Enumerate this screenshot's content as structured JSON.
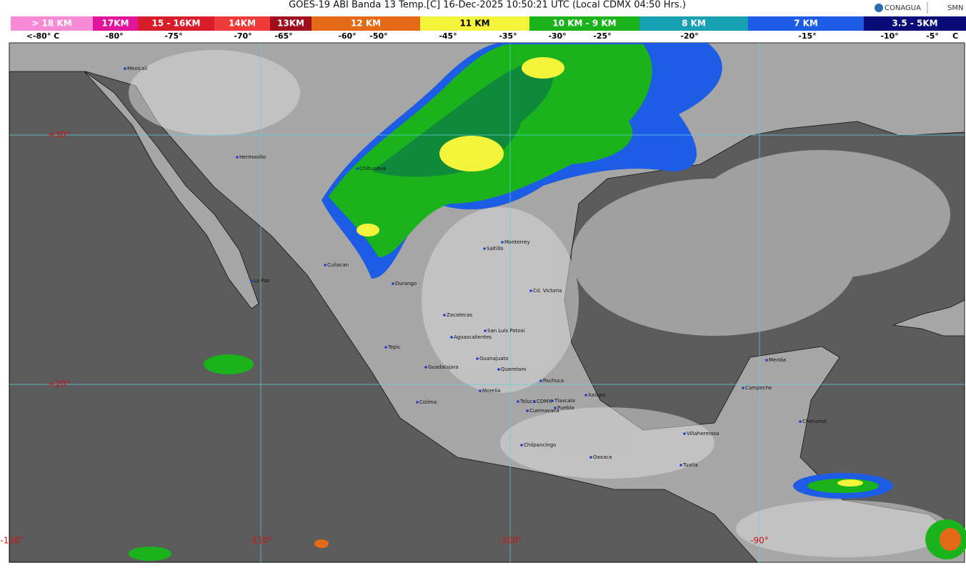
{
  "header": {
    "title": "GOES-19 ABI Banda 13 Temp.[C] 16-Dec-2025 10:50:21 UTC (Local CDMX  04:50 Hrs.)",
    "logos": [
      "CONAGUA",
      "SMN"
    ]
  },
  "legend": {
    "bands": [
      {
        "label": "> 18 KM",
        "color": "#f78ad6"
      },
      {
        "label": "17KM",
        "color": "#e0159b"
      },
      {
        "label": "15 - 16KM",
        "color": "#d91c2a"
      },
      {
        "label": "14KM",
        "color": "#ef3a3a"
      },
      {
        "label": "13KM",
        "color": "#9e0e1c"
      },
      {
        "label": "12 KM",
        "color": "#e56a18"
      },
      {
        "label": "11 KM",
        "color": "#f3f33c"
      },
      {
        "label": "10 KM -  9 KM",
        "color": "#1bb31b"
      },
      {
        "label": "8 KM",
        "color": "#17a2b3"
      },
      {
        "label": "7 KM",
        "color": "#1d5ce4"
      },
      {
        "label": "3.5 - 5KM",
        "color": "#0b0b78"
      }
    ],
    "temperatures": [
      "<-80° C",
      "-80°",
      "-75°",
      "-70°",
      "-65°",
      "-60°",
      "-50°",
      "-45°",
      "-35°",
      "-30°",
      "-25°",
      "-20°",
      "-15°",
      "-10°",
      "-5°",
      "C"
    ]
  },
  "map": {
    "latitudes": [
      "+30°",
      "+20°"
    ],
    "longitudes": [
      "-120°",
      "-110°",
      "-100°",
      "-90°"
    ],
    "cities": [
      "Mexicali",
      "Hermosillo",
      "Chihuahua",
      "Culiacan",
      "La Paz",
      "Durango",
      "Saltillo",
      "Monterrey",
      "Cd. Victoria",
      "Zacatecas",
      "San Luis Potosi",
      "Aguascalientes",
      "Tepic",
      "Guanajuato",
      "Guadalajara",
      "Queretaro",
      "Pachuca",
      "Morelia",
      "Colima",
      "Toluca",
      "CDMX",
      "Tlaxcala",
      "Puebla",
      "Xalapa",
      "Cuernavaca",
      "Chilpancingo",
      "Oaxaca",
      "Villahermosa",
      "Tuxtla",
      "Merida",
      "Campeche",
      "Chetumal"
    ]
  }
}
